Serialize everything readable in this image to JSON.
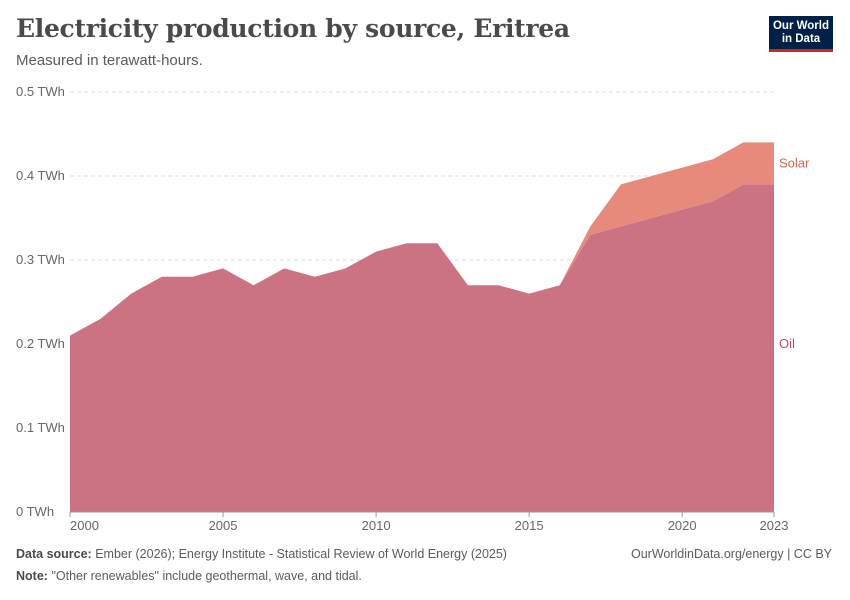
{
  "header": {
    "title": "Electricity production by source, Eritrea",
    "subtitle": "Measured in terawatt-hours."
  },
  "logo": {
    "line1": "Our World",
    "line2": "in Data"
  },
  "footer": {
    "source_label": "Data source:",
    "source_text": "Ember (2026); Energy Institute - Statistical Review of World Energy (2025)",
    "note_label": "Note:",
    "note_text": "\"Other renewables\" include geothermal, wave, and tidal.",
    "link_text": "OurWorldinData.org/energy | CC BY"
  },
  "colors": {
    "oil": "#cc7383",
    "solar": "#e88a7b",
    "oil_label": "#c2466a",
    "solar_label": "#d9604f"
  },
  "chart_data": {
    "type": "area",
    "stacked": true,
    "x": [
      2000,
      2001,
      2002,
      2003,
      2004,
      2005,
      2006,
      2007,
      2008,
      2009,
      2010,
      2011,
      2012,
      2013,
      2014,
      2015,
      2016,
      2017,
      2018,
      2019,
      2020,
      2021,
      2022,
      2023
    ],
    "series": [
      {
        "name": "Oil",
        "values": [
          0.21,
          0.23,
          0.26,
          0.28,
          0.28,
          0.29,
          0.27,
          0.29,
          0.28,
          0.29,
          0.31,
          0.32,
          0.32,
          0.27,
          0.27,
          0.26,
          0.27,
          0.33,
          0.34,
          0.35,
          0.36,
          0.37,
          0.39,
          0.39
        ]
      },
      {
        "name": "Solar",
        "values": [
          0,
          0,
          0,
          0,
          0,
          0,
          0,
          0,
          0,
          0,
          0,
          0,
          0,
          0,
          0,
          0,
          0,
          0.01,
          0.05,
          0.05,
          0.05,
          0.05,
          0.05,
          0.05
        ]
      }
    ],
    "ylim": [
      0,
      0.5
    ],
    "yticks": [
      0,
      0.1,
      0.2,
      0.3,
      0.4,
      0.5
    ],
    "ytick_labels": [
      "0 TWh",
      "0.1 TWh",
      "0.2 TWh",
      "0.3 TWh",
      "0.4 TWh",
      "0.5 TWh"
    ],
    "xticks": [
      2000,
      2005,
      2010,
      2015,
      2020,
      2023
    ],
    "xtick_labels": [
      "2000",
      "2005",
      "2010",
      "2015",
      "2020",
      "2023"
    ],
    "grid": "horizontal dashed",
    "legend": "inline-right"
  }
}
